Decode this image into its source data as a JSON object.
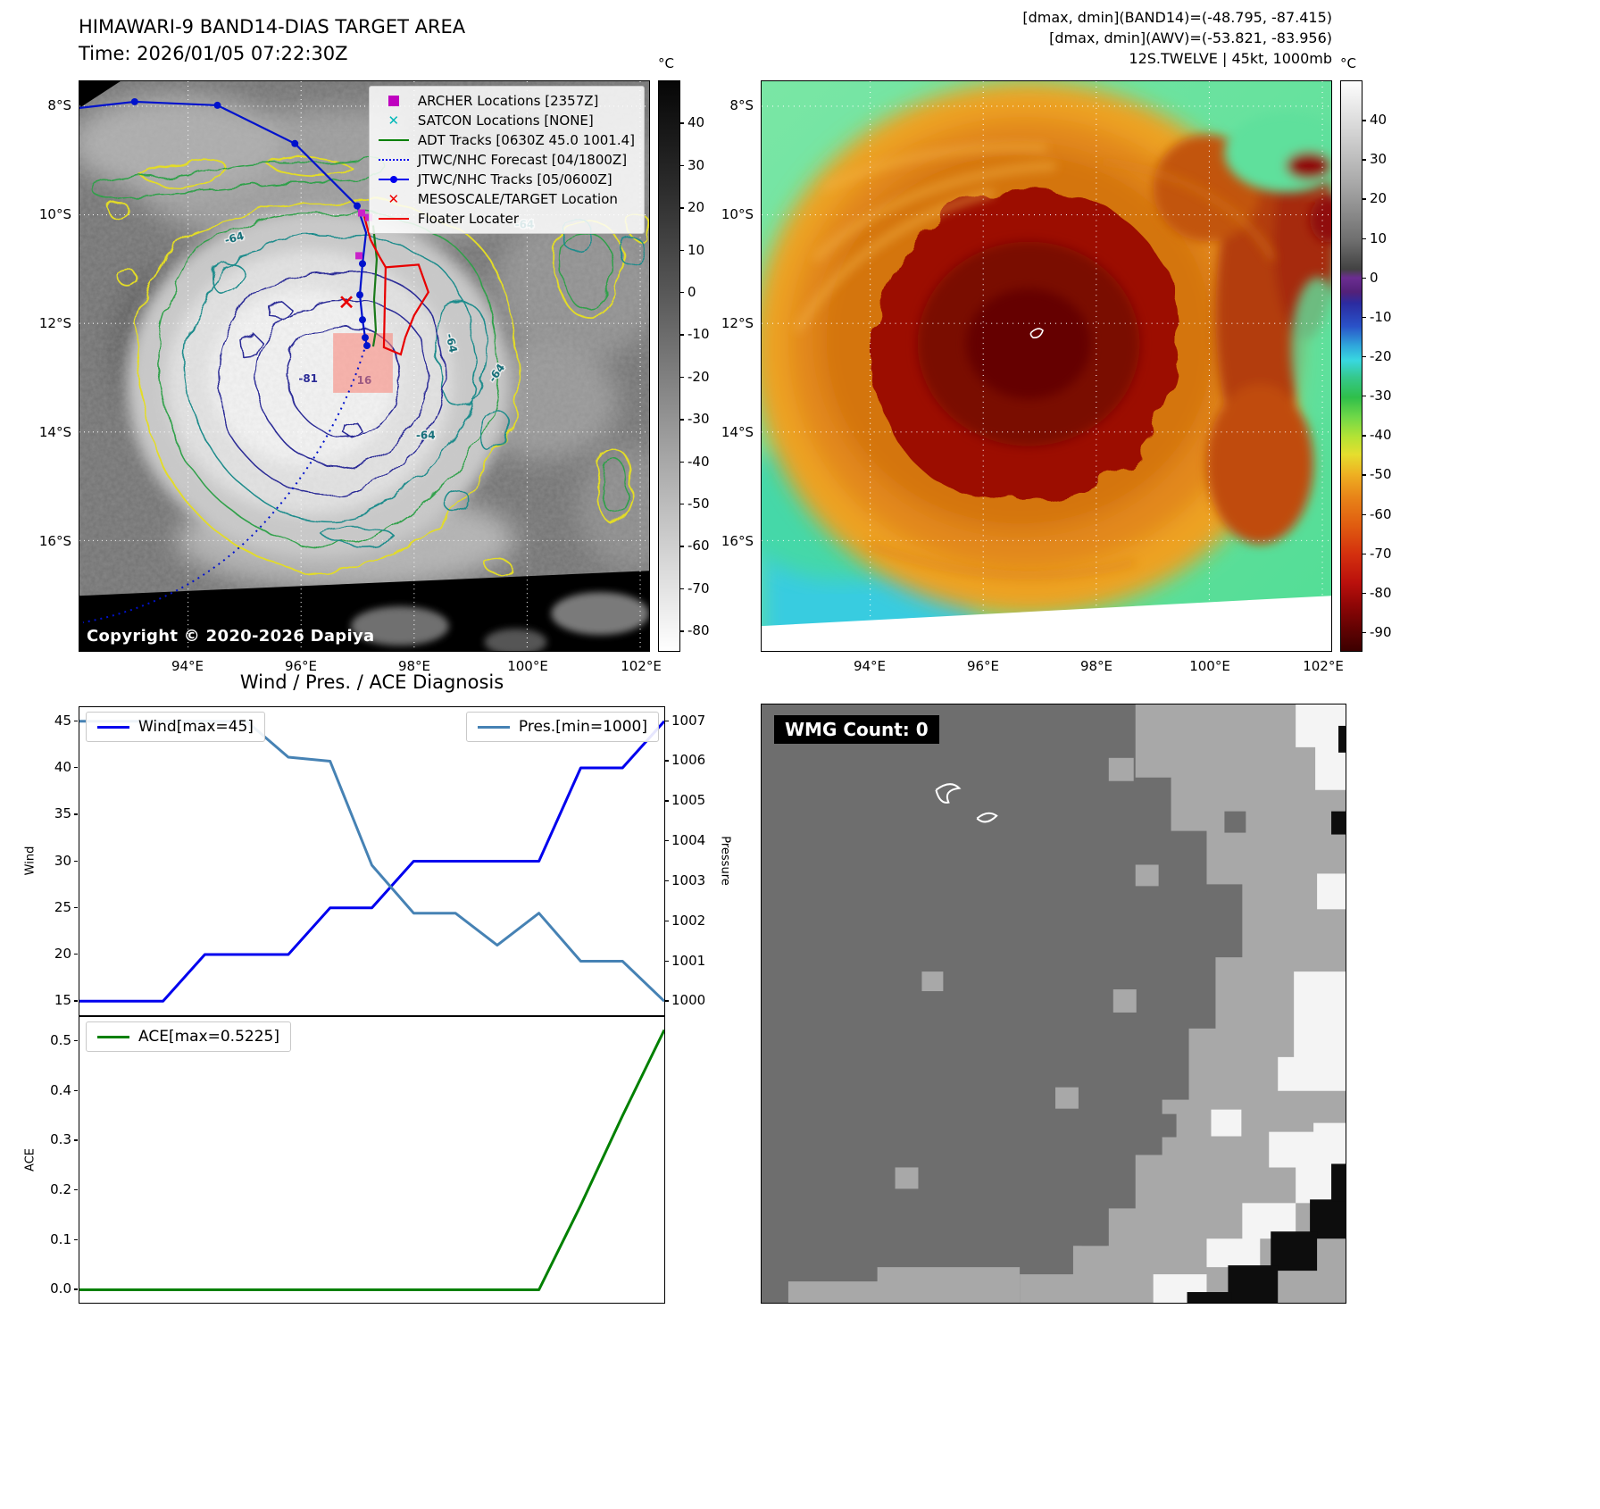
{
  "band14_panel": {
    "title": "HIMAWARI-9 BAND14-DIAS TARGET AREA",
    "subtitle": "Time: 2026/01/05 07:22:30Z",
    "copyright": "Copyright © 2020-2026 Dapiya",
    "colorbar_label": "°C",
    "colorbar_ticks": [
      "40",
      "30",
      "20",
      "10",
      "0",
      "-10",
      "-20",
      "-30",
      "-40",
      "-50",
      "-60",
      "-70",
      "-80"
    ],
    "x_ticks": [
      "94°E",
      "96°E",
      "98°E",
      "100°E",
      "102°E"
    ],
    "y_ticks": [
      "8°S",
      "10°S",
      "12°S",
      "14°S",
      "16°S"
    ],
    "contour_labels": [
      "-64",
      "-64",
      "-64",
      "-64",
      "-64",
      "-81",
      "16"
    ],
    "legend": [
      {
        "label": "ARCHER Locations [2357Z]",
        "marker": "square",
        "color": "#bf00bf"
      },
      {
        "label": "SATCON Locations [NONE]",
        "marker": "x",
        "color": "#00b8b8"
      },
      {
        "label": "ADT Tracks [0630Z 45.0 1001.4]",
        "marker": "line",
        "color": "#008000"
      },
      {
        "label": "JTWC/NHC Forecast [04/1800Z]",
        "marker": "dotted-line",
        "color": "#0000ee"
      },
      {
        "label": "JTWC/NHC Tracks [05/0600Z]",
        "marker": "line-dot",
        "color": "#0000ee"
      },
      {
        "label": "MESOSCALE/TARGET Location",
        "marker": "x",
        "color": "#ee0000"
      },
      {
        "label": "Floater Locater",
        "marker": "line",
        "color": "#ee0000"
      }
    ]
  },
  "awv_panel": {
    "header_lines": [
      "[dmax, dmin](BAND14)=(-48.795, -87.415)",
      "[dmax, dmin](AWV)=(-53.821, -83.956)",
      "12S.TWELVE | 45kt, 1000mb"
    ],
    "colorbar_label": "°C",
    "colorbar_ticks": [
      "40",
      "30",
      "20",
      "10",
      "0",
      "-10",
      "-20",
      "-30",
      "-40",
      "-50",
      "-60",
      "-70",
      "-80",
      "-90"
    ],
    "x_ticks": [
      "94°E",
      "96°E",
      "98°E",
      "100°E",
      "102°E"
    ],
    "y_ticks": [
      "8°S",
      "10°S",
      "12°S",
      "14°S",
      "16°S"
    ]
  },
  "diagnosis": {
    "title": "Wind / Pres. / ACE Diagnosis",
    "wind_legend": "Wind[max=45]",
    "pres_legend": "Pres.[min=1000]",
    "ace_legend": "ACE[max=0.5225]",
    "wind_axis_label": "Wind",
    "pressure_axis_label": "Pressure",
    "ace_axis_label": "ACE"
  },
  "wmg_panel": {
    "badge": "WMG Count: 0"
  },
  "chart_data": [
    {
      "type": "line",
      "title": "Wind / Pres. / ACE Diagnosis",
      "x": [
        0,
        1,
        2,
        3,
        4,
        5,
        6,
        7,
        8,
        9,
        10,
        11,
        12,
        13,
        14
      ],
      "series": [
        {
          "name": "Wind[max=45]",
          "axis": "left",
          "color": "#0000ee",
          "values": [
            15,
            15,
            15,
            20,
            20,
            20,
            25,
            25,
            30,
            30,
            30,
            30,
            40,
            40,
            45
          ]
        },
        {
          "name": "Pres.[min=1000]",
          "axis": "right",
          "color": "#4682b4",
          "values": [
            1007,
            1007,
            1007,
            1007,
            1007,
            1006.1,
            1006,
            1003.4,
            1002.2,
            1002.2,
            1001.4,
            1002.2,
            1001,
            1001,
            1000
          ]
        }
      ],
      "left_ylabel": "Wind",
      "left_ticks": [
        15,
        20,
        25,
        30,
        35,
        40,
        45
      ],
      "right_ylabel": "Pressure",
      "right_ticks": [
        1000,
        1001,
        1002,
        1003,
        1004,
        1005,
        1006,
        1007
      ]
    },
    {
      "type": "line",
      "title": "ACE",
      "x": [
        0,
        1,
        2,
        3,
        4,
        5,
        6,
        7,
        8,
        9,
        10,
        11,
        12,
        13,
        14
      ],
      "series": [
        {
          "name": "ACE[max=0.5225]",
          "axis": "left",
          "color": "#008000",
          "values": [
            0,
            0,
            0,
            0,
            0,
            0,
            0,
            0,
            0,
            0,
            0,
            0,
            0.17,
            0.35,
            0.5225
          ]
        }
      ],
      "left_ylabel": "ACE",
      "left_ticks": [
        0.0,
        0.1,
        0.2,
        0.3,
        0.4,
        0.5
      ]
    }
  ]
}
